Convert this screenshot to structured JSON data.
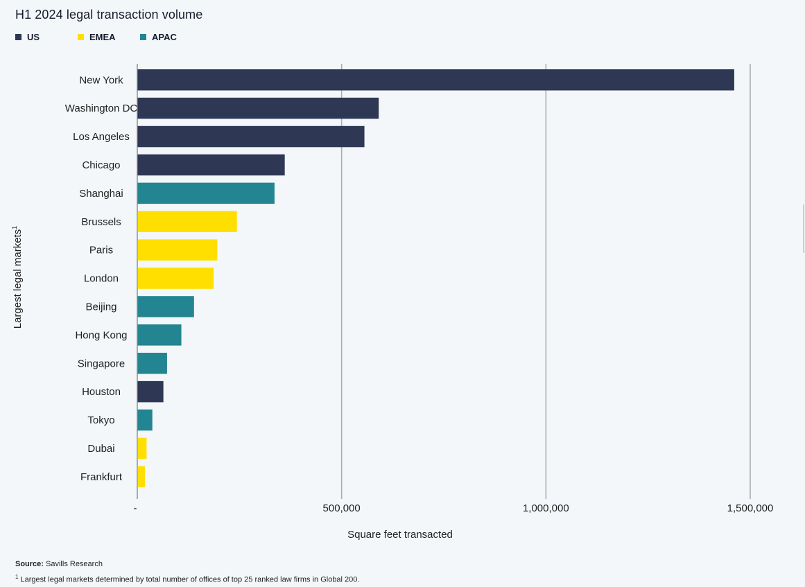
{
  "chart_data": {
    "type": "bar",
    "orientation": "horizontal",
    "title": "H1 2024 legal transaction volume",
    "xlabel": "Square feet transacted",
    "ylabel": "Largest legal markets",
    "ylabel_sup": "1",
    "xlim": [
      0,
      1500000
    ],
    "xticks": [
      0,
      500000,
      1000000,
      1500000
    ],
    "xtick_labels": [
      "-",
      "500,000",
      "1,000,000",
      "1,500,000"
    ],
    "grid": "vertical",
    "legend_position": "top-left",
    "legend": [
      {
        "key": "US",
        "label": "US",
        "color": "#2e3753"
      },
      {
        "key": "EMEA",
        "label": "EMEA",
        "color": "#ffdf00"
      },
      {
        "key": "APAC",
        "label": "APAC",
        "color": "#228591"
      }
    ],
    "categories": [
      "New York",
      "Washington DC",
      "Los Angeles",
      "Chicago",
      "Shanghai",
      "Brussels",
      "Paris",
      "London",
      "Beijing",
      "Hong Kong",
      "Singapore",
      "Houston",
      "Tokyo",
      "Dubai",
      "Frankfurt"
    ],
    "region": [
      "US",
      "US",
      "US",
      "US",
      "APAC",
      "EMEA",
      "EMEA",
      "EMEA",
      "APAC",
      "APAC",
      "APAC",
      "US",
      "APAC",
      "EMEA",
      "EMEA"
    ],
    "values": [
      1460000,
      590000,
      555000,
      360000,
      335000,
      243000,
      195000,
      186000,
      138000,
      107000,
      72000,
      63000,
      36000,
      22000,
      18000
    ]
  },
  "footer": {
    "source_label": "Source:",
    "source_text": "Savills Research",
    "note_sup": "1",
    "note_text": "Largest legal markets determined by total number of offices of top 25 ranked law firms in Global 200."
  },
  "colors": {
    "axis": "#8a9096",
    "gridline": "#a9aeb3",
    "text": "#1e1e1e"
  }
}
